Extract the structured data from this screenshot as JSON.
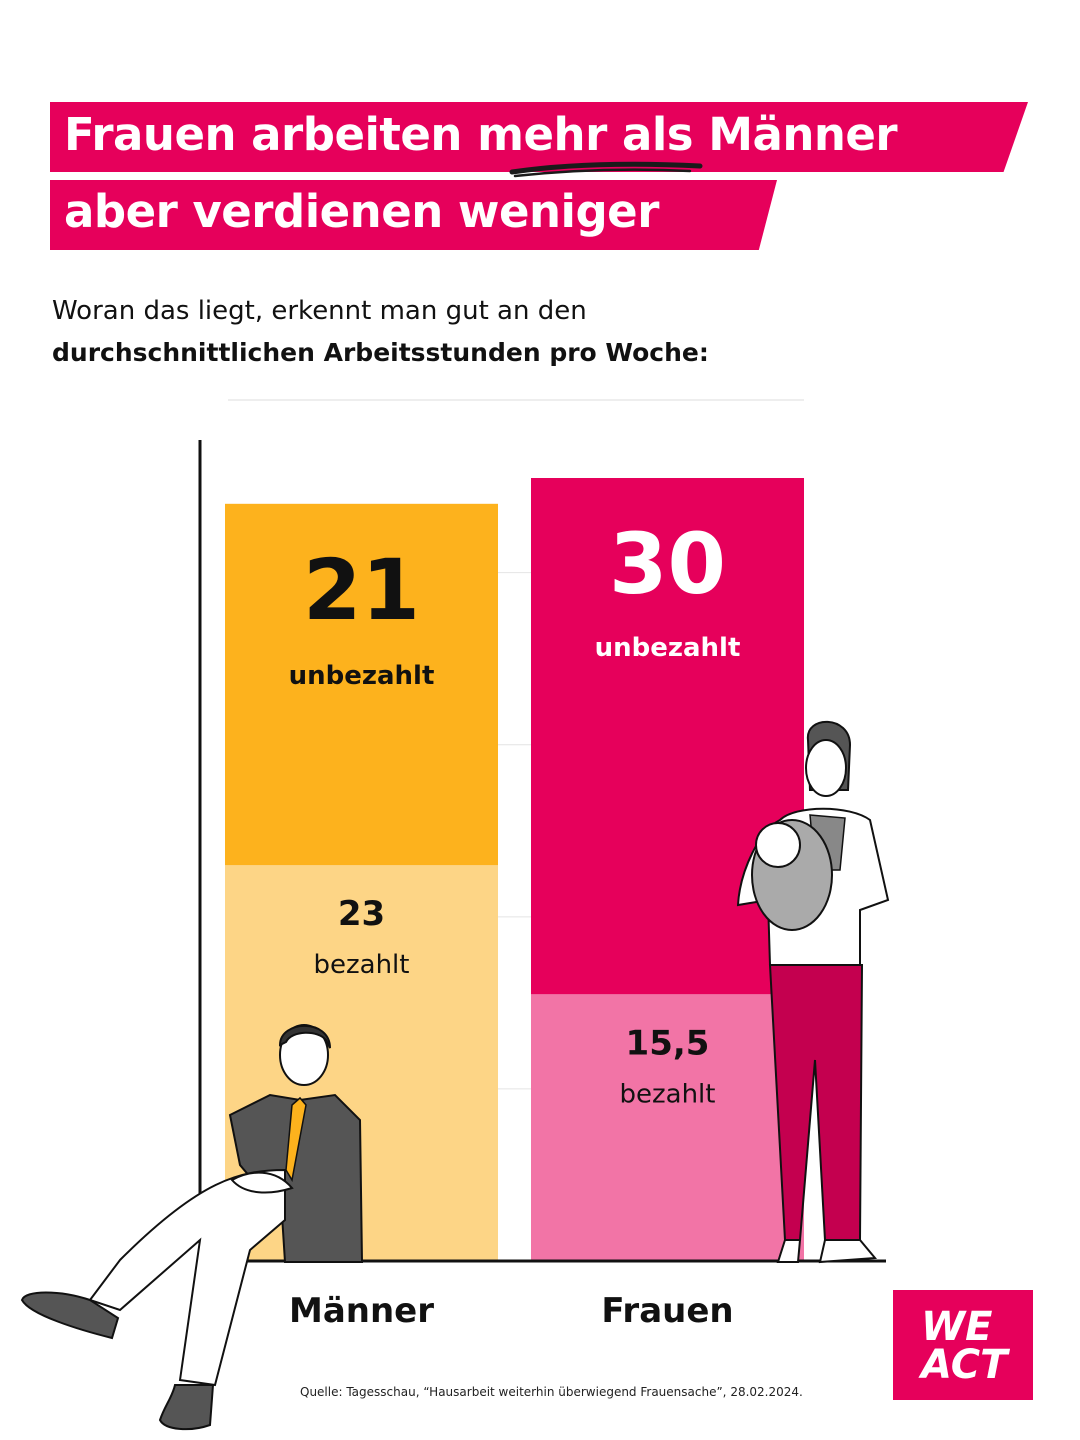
{
  "headline": {
    "line1_a": "Frauen arbeiten ",
    "line1_emph": "mehr",
    "line1_b": " als Männer",
    "line2": "aber verdienen weniger"
  },
  "subtitle": {
    "line1": "Woran das liegt, erkennt man gut an den",
    "line2": "durchschnittlichen Arbeitsstunden pro Woche:"
  },
  "chart_data": {
    "type": "bar",
    "stacked": true,
    "title": "durchschnittliche Arbeitsstunden pro Woche",
    "categories": [
      "Männer",
      "Frauen"
    ],
    "ylim": [
      0,
      45.5
    ],
    "series": [
      {
        "name": "bezahlt",
        "values": [
          23,
          15.5
        ],
        "value_labels": [
          "23",
          "15,5"
        ],
        "colors": [
          "#fdd586",
          "#f274a6"
        ]
      },
      {
        "name": "unbezahlt",
        "values": [
          21,
          30
        ],
        "value_labels": [
          "21",
          "30"
        ],
        "colors": [
          "#fdb21d",
          "#e6005b"
        ]
      }
    ]
  },
  "colors": {
    "accent": "#e6005b",
    "accent_light": "#f274a6",
    "orange": "#fdb21d",
    "orange_light": "#fdd586"
  },
  "source": "Quelle: Tagesschau, “Hausarbeit weiterhin überwiegend Frauensache”, 28.02.2024.",
  "logo": {
    "line1": "WE",
    "line2": "ACT"
  }
}
